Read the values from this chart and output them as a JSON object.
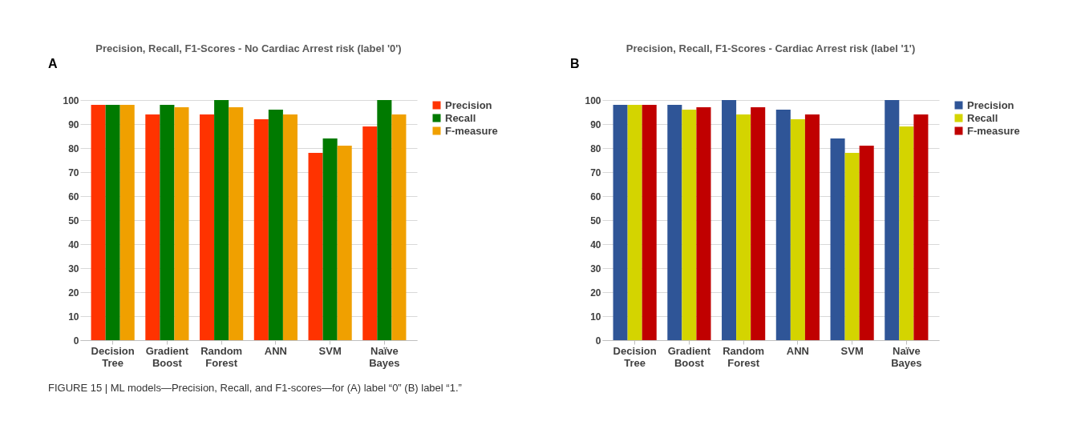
{
  "chart_data": [
    {
      "type": "bar",
      "title": "Precision, Recall, F1-Scores - No Cardiac Arrest risk (label '0')",
      "annotations": [
        "A",
        "FIGURE 15 | ML models—Precision, Recall, and F1-scores—for (A) label “0” (B) label “1.”"
      ],
      "categories": [
        "Decision Tree",
        "Gradient Boost",
        "Random Forest",
        "ANN",
        "SVM",
        "Naïve Bayes"
      ],
      "series": [
        {
          "name": "Precision",
          "color": "#ff3300",
          "values": [
            98,
            94,
            94,
            92,
            78,
            89
          ]
        },
        {
          "name": "Recall",
          "color": "#007a00",
          "values": [
            98,
            98,
            100,
            96,
            84,
            100
          ]
        },
        {
          "name": "F-measure",
          "color": "#f0a000",
          "values": [
            98,
            97,
            97,
            94,
            81,
            94
          ]
        }
      ],
      "ylim": [
        0,
        100
      ],
      "yticks": [
        0,
        10,
        20,
        30,
        40,
        50,
        60,
        70,
        80,
        90,
        100
      ],
      "grid": "y",
      "legend": "right"
    },
    {
      "type": "bar",
      "title": "Precision, Recall, F1-Scores - Cardiac Arrest risk (label '1')",
      "annotations": [
        "B"
      ],
      "categories": [
        "Decision Tree",
        "Gradient Boost",
        "Random Forest",
        "ANN",
        "SVM",
        "Naïve Bayes"
      ],
      "series": [
        {
          "name": "Precision",
          "color": "#2f5597",
          "values": [
            98,
            98,
            100,
            96,
            84,
            100
          ]
        },
        {
          "name": "Recall",
          "color": "#d4d400",
          "values": [
            98,
            96,
            94,
            92,
            78,
            89
          ]
        },
        {
          "name": "F-measure",
          "color": "#c00000",
          "values": [
            98,
            97,
            97,
            94,
            81,
            94
          ]
        }
      ],
      "ylim": [
        0,
        100
      ],
      "yticks": [
        0,
        10,
        20,
        30,
        40,
        50,
        60,
        70,
        80,
        90,
        100
      ],
      "grid": "y",
      "legend": "right"
    }
  ]
}
